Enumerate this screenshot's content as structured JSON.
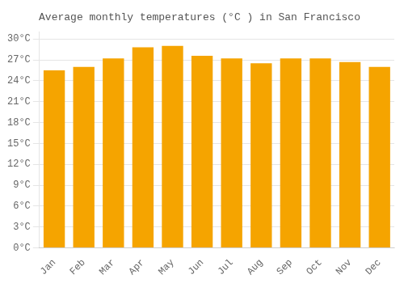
{
  "chart_data": {
    "type": "bar",
    "title": "Average monthly temperatures (°C ) in San Francisco",
    "categories": [
      "Jan",
      "Feb",
      "Mar",
      "Apr",
      "May",
      "Jun",
      "Jul",
      "Aug",
      "Sep",
      "Oct",
      "Nov",
      "Dec"
    ],
    "values": [
      25.5,
      26.0,
      27.2,
      28.8,
      29.0,
      27.6,
      27.2,
      26.5,
      27.2,
      27.2,
      26.7,
      26.0
    ],
    "color": "#F5A400",
    "ylim": [
      0,
      31
    ],
    "yticks": [
      {
        "value": 0,
        "label": "0°C"
      },
      {
        "value": 3,
        "label": "3°C"
      },
      {
        "value": 6,
        "label": "6°C"
      },
      {
        "value": 9,
        "label": "9°C"
      },
      {
        "value": 12,
        "label": "12°C"
      },
      {
        "value": 15,
        "label": "15°C"
      },
      {
        "value": 18,
        "label": "18°C"
      },
      {
        "value": 21,
        "label": "21°C"
      },
      {
        "value": 24,
        "label": "24°C"
      },
      {
        "value": 27,
        "label": "27°C"
      },
      {
        "value": 30,
        "label": "30°C"
      }
    ],
    "grid": true
  }
}
